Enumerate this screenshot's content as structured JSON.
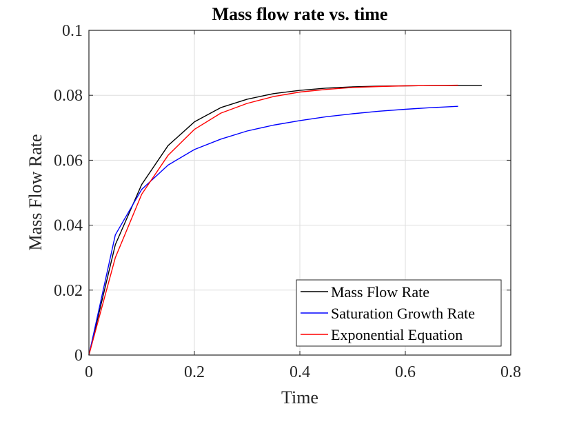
{
  "chart_data": {
    "type": "line",
    "title": "Mass flow rate vs. time",
    "xlabel": "Time",
    "ylabel": "Mass Flow Rate",
    "xlim": [
      0,
      0.8
    ],
    "ylim": [
      0,
      0.1
    ],
    "xticks": [
      "0",
      "0.2",
      "0.4",
      "0.6",
      "0.8"
    ],
    "yticks": [
      "0",
      "0.02",
      "0.04",
      "0.06",
      "0.08",
      "0.1"
    ],
    "grid": true,
    "legend_position": "bottom-right",
    "series": [
      {
        "name": "Mass Flow Rate",
        "color": "#000000",
        "x": [
          0,
          0.05,
          0.1,
          0.15,
          0.2,
          0.25,
          0.3,
          0.35,
          0.4,
          0.45,
          0.5,
          0.55,
          0.6,
          0.65,
          0.7,
          0.745
        ],
        "y": [
          0,
          0.034,
          0.0525,
          0.0645,
          0.0718,
          0.0762,
          0.0788,
          0.0805,
          0.0815,
          0.0822,
          0.0826,
          0.0828,
          0.0829,
          0.083,
          0.083,
          0.083
        ]
      },
      {
        "name": "Saturation Growth Rate",
        "color": "#0000ff",
        "x": [
          0,
          0.05,
          0.1,
          0.15,
          0.2,
          0.25,
          0.3,
          0.35,
          0.4,
          0.45,
          0.5,
          0.55,
          0.6,
          0.65,
          0.7
        ],
        "y": [
          0,
          0.037,
          0.051,
          0.0585,
          0.0633,
          0.0665,
          0.069,
          0.0708,
          0.0722,
          0.0734,
          0.0743,
          0.0751,
          0.0757,
          0.0762,
          0.0766
        ]
      },
      {
        "name": "Exponential Equation",
        "color": "#ff0000",
        "x": [
          0,
          0.05,
          0.1,
          0.15,
          0.2,
          0.25,
          0.3,
          0.35,
          0.4,
          0.45,
          0.5,
          0.55,
          0.6,
          0.65,
          0.7
        ],
        "y": [
          0,
          0.03,
          0.0495,
          0.0615,
          0.0695,
          0.0745,
          0.0775,
          0.0796,
          0.081,
          0.0818,
          0.0824,
          0.0827,
          0.0829,
          0.083,
          0.0831
        ]
      }
    ]
  }
}
